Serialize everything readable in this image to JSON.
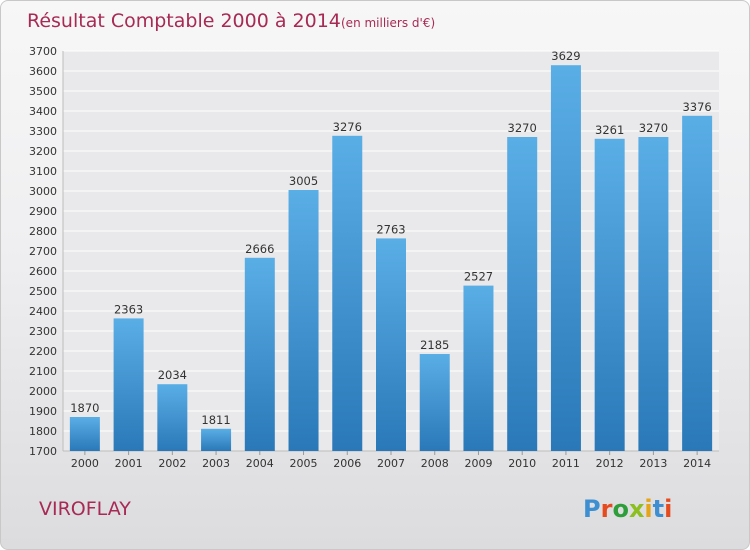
{
  "chart_data": {
    "type": "bar",
    "title": "Résultat Comptable 2000 à 2014",
    "subtitle": "(en milliers d'€)",
    "categories": [
      "2000",
      "2001",
      "2002",
      "2003",
      "2004",
      "2005",
      "2006",
      "2007",
      "2008",
      "2009",
      "2010",
      "2011",
      "2012",
      "2013",
      "2014"
    ],
    "values": [
      1870,
      2363,
      2034,
      1811,
      2666,
      3005,
      3276,
      2763,
      2185,
      2527,
      3270,
      3629,
      3261,
      3270,
      3376
    ],
    "ylim": [
      1700,
      3700
    ],
    "ytick_step": 100,
    "grid": true,
    "bar_color_top": "#5aaee6",
    "bar_color_bottom": "#2a78b8"
  },
  "footer": {
    "city": "VIROFLAY",
    "logo_text": "Proxiti",
    "logo_letter_colors": [
      "#3d8fd1",
      "#e64b1f",
      "#2e9e3a",
      "#8cbf1f",
      "#e6a417",
      "#3d8fd1",
      "#e64b1f"
    ]
  }
}
